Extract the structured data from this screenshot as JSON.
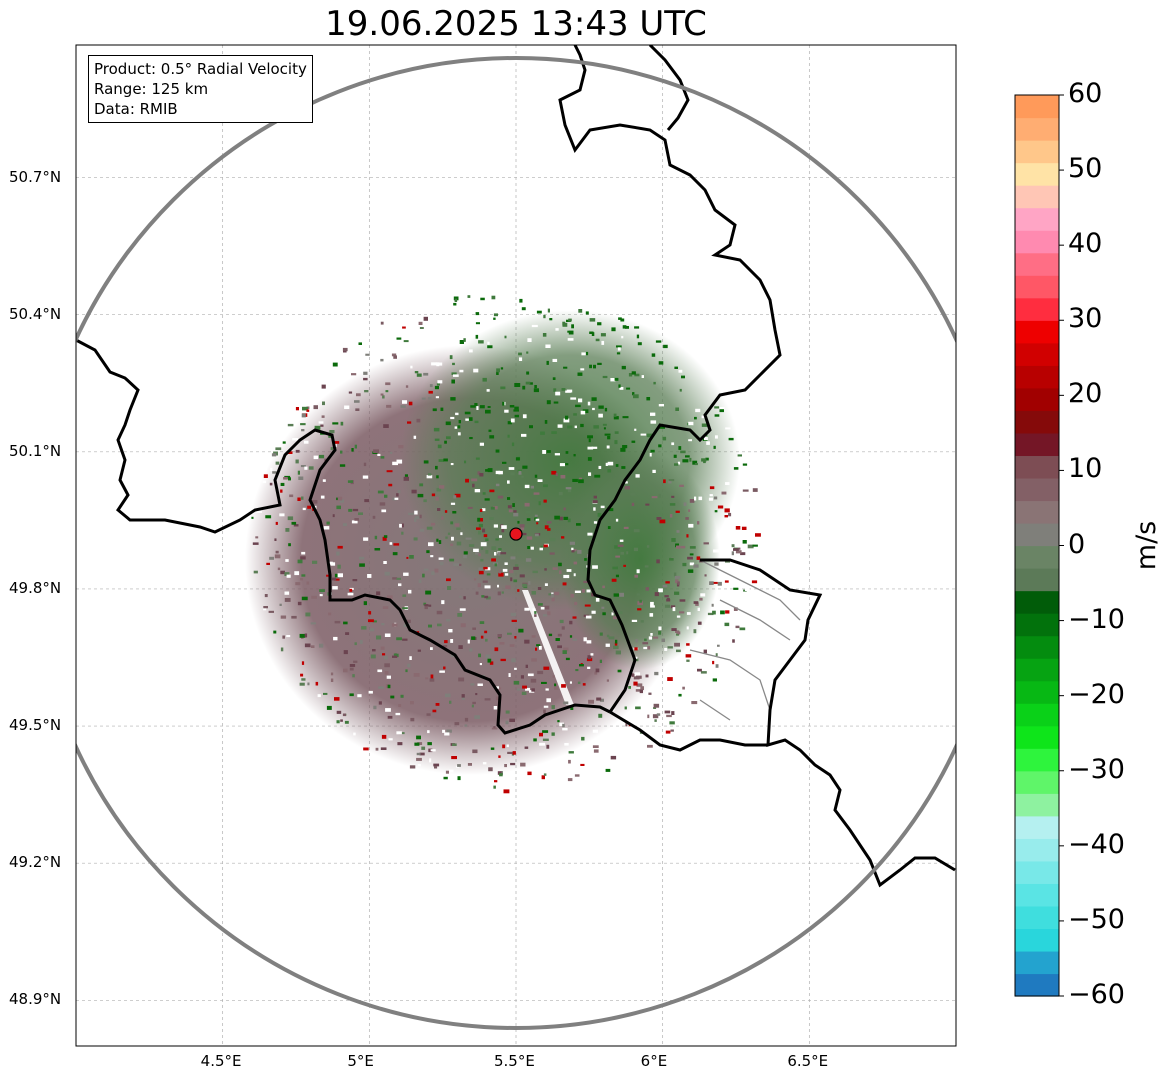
{
  "title": "19.06.2025 13:43 UTC",
  "info": {
    "product": "Product: 0.5° Radial Velocity",
    "range": "Range: 125 km",
    "data": "Data: RMIB"
  },
  "map": {
    "lon_range": [
      4.0,
      7.0
    ],
    "lat_range": [
      48.8,
      50.99
    ],
    "radar_site": {
      "lon": 5.5,
      "lat": 49.92,
      "marker_color": "#e8141e"
    },
    "range_ring_km": 125,
    "x_ticks": [
      "4.5°E",
      "5°E",
      "5.5°E",
      "6°E",
      "6.5°E"
    ],
    "x_tick_values": [
      4.5,
      5.0,
      5.5,
      6.0,
      6.5
    ],
    "y_ticks": [
      "48.9°N",
      "49.2°N",
      "49.5°N",
      "49.8°N",
      "50.1°N",
      "50.4°N",
      "50.7°N"
    ],
    "y_tick_values": [
      48.9,
      49.2,
      49.5,
      49.8,
      50.1,
      50.4,
      50.7
    ],
    "grid": true,
    "colors": {
      "border": "#000000",
      "sub_border": "#888888",
      "range_ring": "#808080",
      "gridline": "#b0b0b0"
    }
  },
  "colorbar": {
    "label": "m/s",
    "range": [
      -60,
      60
    ],
    "ticks": [
      "60",
      "50",
      "40",
      "30",
      "20",
      "10",
      "0",
      "−10",
      "−20",
      "−30",
      "−40",
      "−50",
      "−60"
    ],
    "tick_values": [
      60,
      50,
      40,
      30,
      20,
      10,
      0,
      -10,
      -20,
      -30,
      -40,
      -50,
      -60
    ],
    "colors_low_to_high": [
      "#1f7ac0",
      "#23a3cf",
      "#29d6dc",
      "#3fdede",
      "#5ae4e4",
      "#78e8e8",
      "#98ecec",
      "#b5f0f0",
      "#8ef2a0",
      "#5ff569",
      "#2ef43d",
      "#0ee51a",
      "#0ad118",
      "#07b814",
      "#06a312",
      "#048c0f",
      "#02720c",
      "#015c09",
      "#5c7a58",
      "#6a8465",
      "#7f7f7a",
      "#8a7475",
      "#836066",
      "#7d4d54",
      "#741626",
      "#850a0a",
      "#a10000",
      "#b80000",
      "#d10000",
      "#ee0000",
      "#ff2d3f",
      "#ff5766",
      "#ff6e85",
      "#ff8ab0",
      "#ffa5c5",
      "#ffc6b5",
      "#ffe3a6",
      "#ffc78a",
      "#ffad72",
      "#ff9a5a"
    ]
  }
}
